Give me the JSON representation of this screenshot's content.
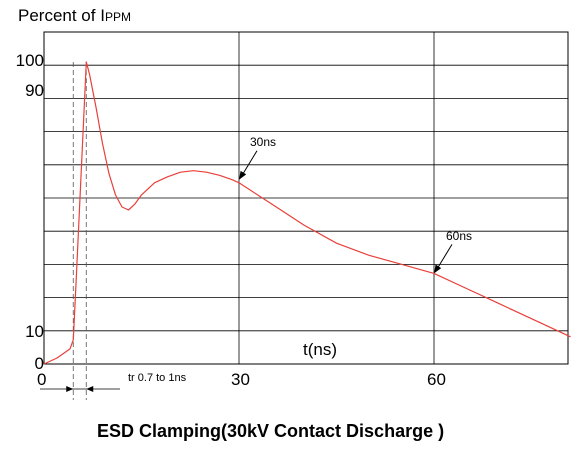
{
  "chart_data": {
    "type": "line",
    "title": "ESD Clamping(30kV Contact Discharge )",
    "ylabel": "Percent of I",
    "ylabel_sub": "PPM",
    "xlabel": "t(ns)",
    "x_ticks": [
      "0",
      "30",
      "60"
    ],
    "y_ticks": [
      "0",
      "10",
      "90",
      "100"
    ],
    "xlim": [
      0,
      81
    ],
    "ylim": [
      0,
      100
    ],
    "grid": true,
    "rise_time_note": "tr 0.7 to 1ns",
    "annotations": [
      {
        "text": "30ns",
        "x": 30,
        "y": 61
      },
      {
        "text": "60ns",
        "x": 60,
        "y": 30
      }
    ],
    "series": [
      {
        "color": "#e8403a",
        "x": [
          0,
          2,
          4,
          4.5,
          5,
          6.5,
          7,
          8,
          9,
          10,
          11,
          12,
          13,
          14,
          15,
          17,
          19,
          21,
          23,
          25,
          27,
          29,
          30,
          35,
          40,
          45,
          50,
          55,
          60,
          65,
          70,
          75,
          81
        ],
        "y": [
          0,
          2,
          5,
          8,
          30,
          100,
          96,
          85,
          73,
          63,
          56,
          52,
          51,
          53,
          56,
          60,
          62,
          63.5,
          64,
          63.5,
          62.5,
          61,
          60,
          53,
          46,
          40,
          36,
          33,
          30,
          25,
          20,
          15,
          9
        ]
      }
    ]
  }
}
